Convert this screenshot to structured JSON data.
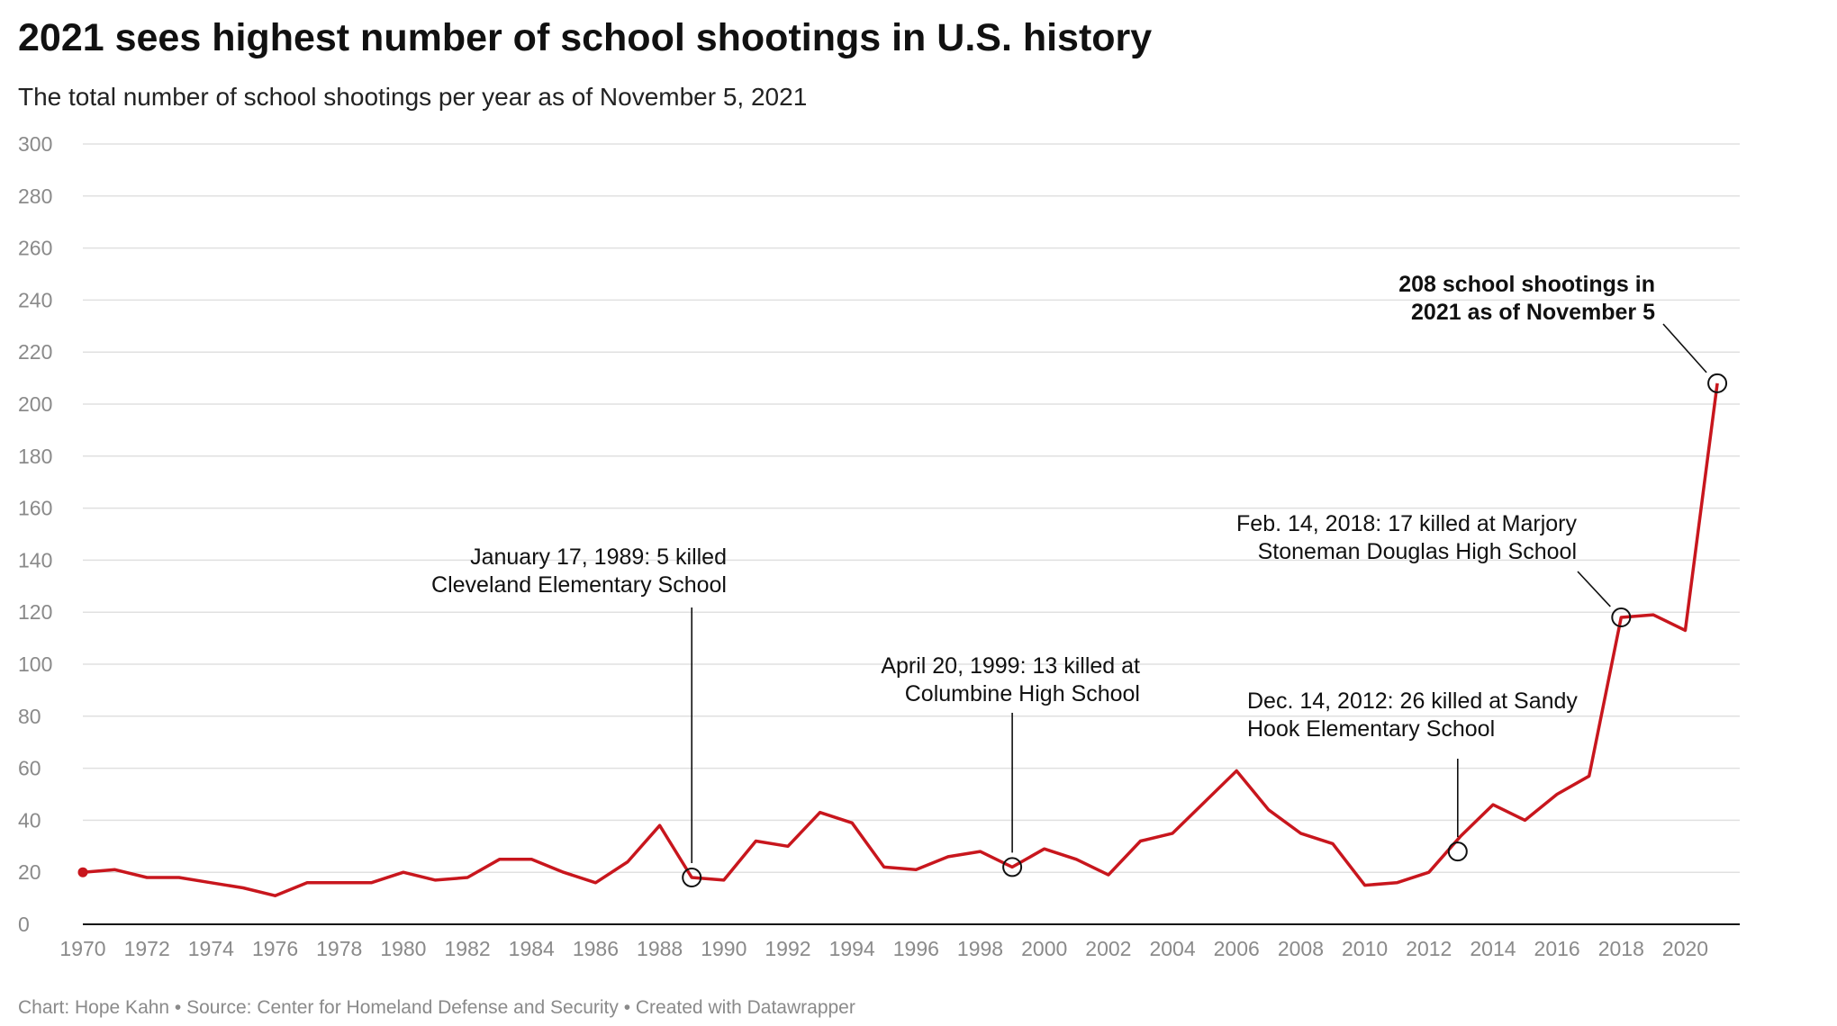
{
  "header": {
    "title": "2021 sees highest number of school shootings in U.S. history",
    "subtitle": "The total number of school shootings per year as of November 5, 2021"
  },
  "footer": {
    "credit": "Chart: Hope Kahn • Source: Center for Homeland Defense and Security • Created with Datawrapper"
  },
  "colors": {
    "line": "#c8161d",
    "grid": "#e0e0e0",
    "axis_text": "#8a8a8a"
  },
  "chart_data": {
    "type": "line",
    "title": "2021 sees highest number of school shootings in U.S. history",
    "xlabel": "",
    "ylabel": "",
    "xlim": [
      1970,
      2021
    ],
    "ylim": [
      0,
      300
    ],
    "grid": true,
    "y_ticks": [
      0,
      20,
      40,
      60,
      80,
      100,
      120,
      140,
      160,
      180,
      200,
      220,
      240,
      260,
      280,
      300
    ],
    "x_ticks": [
      1970,
      1972,
      1974,
      1976,
      1978,
      1980,
      1982,
      1984,
      1986,
      1988,
      1990,
      1992,
      1994,
      1996,
      1998,
      2000,
      2002,
      2004,
      2006,
      2008,
      2010,
      2012,
      2014,
      2016,
      2018,
      2020
    ],
    "series": [
      {
        "x": [
          1970,
          1971,
          1972,
          1973,
          1974,
          1975,
          1976,
          1977,
          1978,
          1979,
          1980,
          1981,
          1982,
          1983,
          1984,
          1985,
          1986,
          1987,
          1988,
          1989,
          1990,
          1991,
          1992,
          1993,
          1994,
          1995,
          1996,
          1997,
          1998,
          1999,
          2000,
          2001,
          2002,
          2003,
          2004,
          2005,
          2006,
          2007,
          2008,
          2009,
          2010,
          2011,
          2012,
          2013,
          2014,
          2015,
          2016,
          2017,
          2018,
          2019,
          2020,
          2021
        ],
        "values": [
          20,
          21,
          18,
          18,
          16,
          14,
          11,
          16,
          16,
          16,
          20,
          17,
          18,
          25,
          25,
          20,
          16,
          24,
          38,
          18,
          17,
          32,
          30,
          43,
          39,
          22,
          21,
          26,
          28,
          22,
          29,
          25,
          19,
          32,
          35,
          47,
          59,
          44,
          35,
          31,
          15,
          16,
          20,
          34,
          46,
          40,
          50,
          57,
          118,
          119,
          113,
          208
        ]
      }
    ],
    "annotations": [
      {
        "year": 1989,
        "value": 18,
        "label_lines": [
          "January 17, 1989: 5 killed",
          "Cleveland Elementary School"
        ],
        "bold": false
      },
      {
        "year": 1999,
        "value": 22,
        "label_lines": [
          "April 20, 1999: 13 killed at",
          "Columbine High School"
        ],
        "bold": false
      },
      {
        "year": 2012.9,
        "value": 28,
        "label_lines": [
          "Dec. 14, 2012: 26 killed at Sandy",
          "Hook Elementary School"
        ],
        "bold": false
      },
      {
        "year": 2018,
        "value": 118,
        "label_lines": [
          "Feb. 14, 2018: 17 killed at Marjory",
          "Stoneman Douglas High School"
        ],
        "bold": false
      },
      {
        "year": 2021,
        "value": 208,
        "label_lines": [
          "208 school shootings in",
          "2021 as of November 5"
        ],
        "bold": true
      }
    ]
  }
}
